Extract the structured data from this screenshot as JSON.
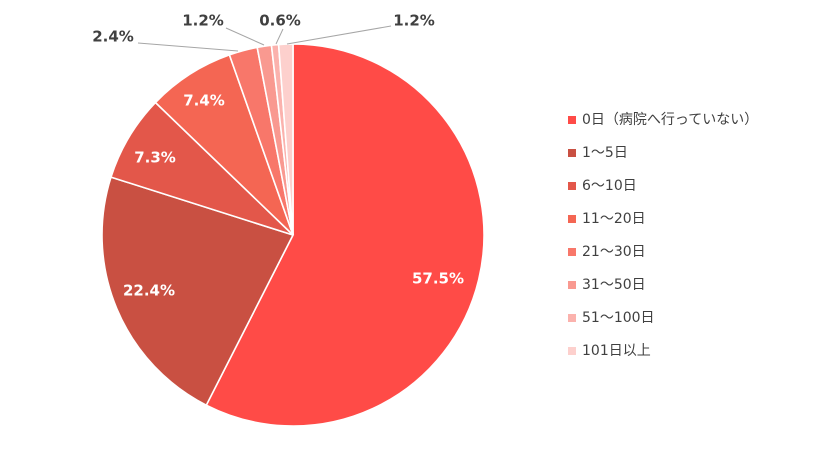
{
  "chart_data": {
    "type": "pie",
    "title": "",
    "categories": [
      "0日（病院へ行っていない）",
      "1～5日",
      "6～10日",
      "11～20日",
      "21～30日",
      "31～50日",
      "51～100日",
      "101日以上"
    ],
    "values": [
      57.5,
      22.4,
      7.3,
      7.4,
      2.4,
      1.2,
      0.6,
      1.2
    ],
    "value_labels": [
      "57.5%",
      "22.4%",
      "7.3%",
      "7.4%",
      "2.4%",
      "1.2%",
      "0.6%",
      "1.2%"
    ],
    "colors": [
      "#ff4b47",
      "#c95042",
      "#e3574a",
      "#f46653",
      "#f8776a",
      "#f99990",
      "#fbb2ad",
      "#fdd0cd"
    ],
    "start_angle_deg": 0,
    "direction": "clockwise",
    "legend_position": "right"
  }
}
